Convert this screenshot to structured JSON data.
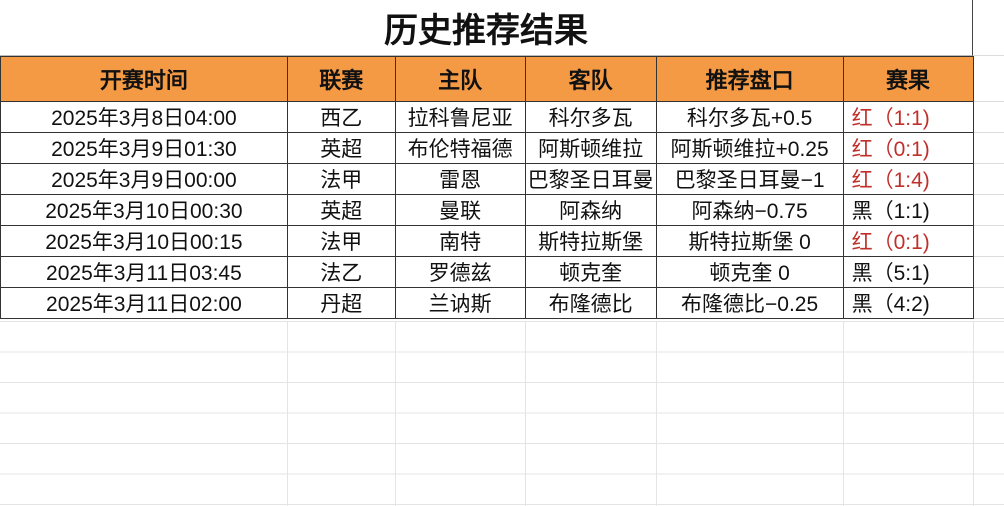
{
  "title": "历史推荐结果",
  "headers": [
    "开赛时间",
    "联赛",
    "主队",
    "客队",
    "推荐盘口",
    "赛果"
  ],
  "rows": [
    {
      "time": "2025年3月8日04:00",
      "league": "西乙",
      "home": "拉科鲁尼亚",
      "away": "科尔多瓦",
      "pick": "科尔多瓦+0.5",
      "result": "红（1:1)",
      "win": true
    },
    {
      "time": "2025年3月9日01:30",
      "league": "英超",
      "home": "布伦特福德",
      "away": "阿斯顿维拉",
      "pick": "阿斯顿维拉+0.25",
      "result": "红（0:1)",
      "win": true
    },
    {
      "time": "2025年3月9日00:00",
      "league": "法甲",
      "home": "雷恩",
      "away": "巴黎圣日耳曼",
      "pick": "巴黎圣日耳曼−1",
      "result": "红（1:4)",
      "win": true
    },
    {
      "time": "2025年3月10日00:30",
      "league": "英超",
      "home": "曼联",
      "away": "阿森纳",
      "pick": "阿森纳−0.75",
      "result": "黑（1:1)",
      "win": false
    },
    {
      "time": "2025年3月10日00:15",
      "league": "法甲",
      "home": "南特",
      "away": "斯特拉斯堡",
      "pick": "斯特拉斯堡 0",
      "result": "红（0:1)",
      "win": true
    },
    {
      "time": "2025年3月11日03:45",
      "league": "法乙",
      "home": "罗德兹",
      "away": "顿克奎",
      "pick": "顿克奎 0",
      "result": "黑（5:1)",
      "win": false
    },
    {
      "time": "2025年3月11日02:00",
      "league": "丹超",
      "home": "兰讷斯",
      "away": "布隆德比",
      "pick": "布隆德比−0.25",
      "result": "黑（4:2)",
      "win": false
    }
  ],
  "colors": {
    "header_bg": "#F49A45",
    "win": "#c0302a",
    "loss": "#111111"
  }
}
